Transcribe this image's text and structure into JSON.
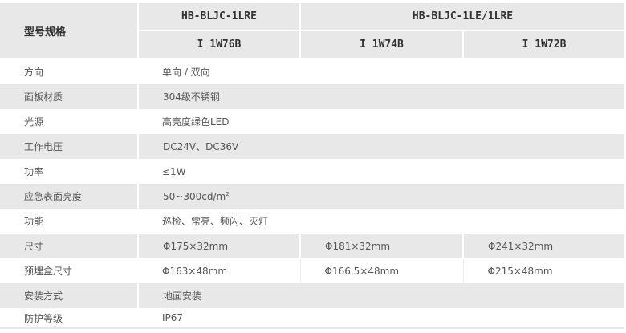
{
  "header": {
    "label": "型号规格",
    "group1": "HB-BLJC-1LRE",
    "group2": "HB-BLJC-1LE/1LRE",
    "models": [
      "I 1W76B",
      "I 1W74B",
      "I 1W72B"
    ]
  },
  "rows": [
    {
      "label": "方向",
      "value": "单向 / 双向"
    },
    {
      "label": "面板材质",
      "value": "304级不锈钢"
    },
    {
      "label": "光源",
      "value": "高亮度绿色LED"
    },
    {
      "label": "工作电压",
      "value": "DC24V、DC36V"
    },
    {
      "label": "功率",
      "value": "≤1W"
    },
    {
      "label": "应急表面亮度",
      "value": "50~300cd/m",
      "sup": "2"
    },
    {
      "label": "功能",
      "value": "巡检、常亮、频闪、灭灯"
    },
    {
      "label": "尺寸",
      "values": [
        "Φ175×32mm",
        "Φ181×32mm",
        "Φ241×32mm"
      ]
    },
    {
      "label": "预埋盒尺寸",
      "values": [
        "Φ163×48mm",
        "Φ166.5×48mm",
        "Φ215×48mm"
      ]
    },
    {
      "label": "安装方式",
      "value": "地面安装"
    },
    {
      "label": "防护等级",
      "value": "IP67"
    }
  ]
}
